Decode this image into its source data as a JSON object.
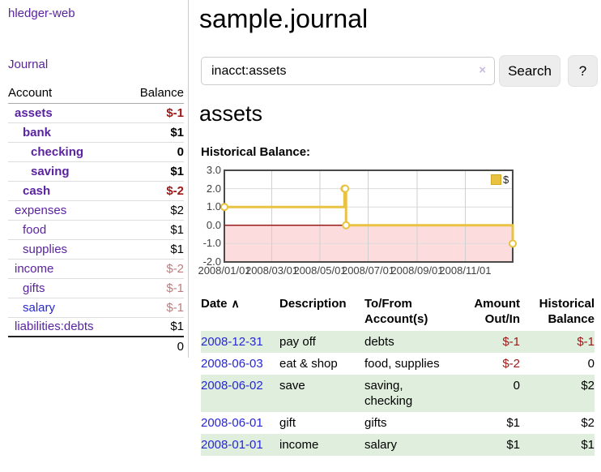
{
  "app": {
    "brand": "hledger-web"
  },
  "colors": {
    "accent_purple": "#5a23a0",
    "link_blue": "#2727d4",
    "negative_strong": "#9d1616",
    "negative_soft": "#bd7b7b",
    "row_stripe_green": "#dfeedd",
    "chart_gold": "#e8c240",
    "chart_negative_region": "#fcdcdc",
    "chart_zero_line": "#991b1b"
  },
  "sidebar": {
    "journal_label": "Journal",
    "accounts": {
      "headers": [
        "Account",
        "Balance"
      ],
      "rows": [
        {
          "name": "assets",
          "balance": "$-1",
          "depth": 1,
          "bold": true,
          "neg": "strong"
        },
        {
          "name": "bank",
          "balance": "$1",
          "depth": 2,
          "bold": true,
          "neg": ""
        },
        {
          "name": "checking",
          "balance": "0",
          "depth": 3,
          "bold": true,
          "neg": ""
        },
        {
          "name": "saving",
          "balance": "$1",
          "depth": 3,
          "bold": true,
          "neg": ""
        },
        {
          "name": "cash",
          "balance": "$-2",
          "depth": 2,
          "bold": true,
          "neg": "strong"
        },
        {
          "name": "expenses",
          "balance": "$2",
          "depth": 1,
          "bold": false,
          "neg": ""
        },
        {
          "name": "food",
          "balance": "$1",
          "depth": 2,
          "bold": false,
          "neg": ""
        },
        {
          "name": "supplies",
          "balance": "$1",
          "depth": 2,
          "bold": false,
          "neg": ""
        },
        {
          "name": "income",
          "balance": "$-2",
          "depth": 1,
          "bold": false,
          "neg": "soft"
        },
        {
          "name": "gifts",
          "balance": "$-1",
          "depth": 2,
          "bold": false,
          "neg": "soft"
        },
        {
          "name": "salary",
          "balance": "$-1",
          "depth": 2,
          "bold": false,
          "neg": "soft",
          "link_color": "blue"
        },
        {
          "name": "liabilities:debts",
          "balance": "$1",
          "depth": 1,
          "bold": false,
          "neg": ""
        }
      ],
      "total": "0"
    }
  },
  "main": {
    "title": "sample.journal",
    "search": {
      "value": "inacct:assets",
      "clear_icon": "×",
      "button_label": "Search",
      "help_label": "?"
    },
    "account_heading": "assets"
  },
  "chart_data": {
    "type": "line",
    "title": "Historical Balance:",
    "series": [
      {
        "name": "$",
        "color": "#e8c240",
        "style": "step",
        "points": [
          [
            "2008-01-01",
            1
          ],
          [
            "2008-06-01",
            2
          ],
          [
            "2008-06-02",
            2
          ],
          [
            "2008-06-03",
            0
          ],
          [
            "2008-12-31",
            -1
          ]
        ]
      }
    ],
    "x_range": [
      "2008-01-01",
      "2008-12-31"
    ],
    "ylim": [
      -2,
      3
    ],
    "y_ticks": [
      3,
      2,
      1,
      0,
      -1,
      -2
    ],
    "x_ticks": [
      "2008/01/01",
      "2008/03/01",
      "2008/05/01",
      "2008/07/01",
      "2008/09/01",
      "2008/11/01"
    ],
    "grid": true,
    "legend_position": "top-right",
    "negative_region_color": "#fcdcdc",
    "zero_line_color": "#991b1b"
  },
  "register": {
    "sort_icon": "∧",
    "headers": [
      {
        "label": "Date",
        "sorted": true,
        "align": "left"
      },
      {
        "label": "Description",
        "align": "left"
      },
      {
        "label": "To/From Account(s)",
        "align": "left"
      },
      {
        "label": "Amount Out/In",
        "align": "right"
      },
      {
        "label": "Historical Balance",
        "align": "right"
      }
    ],
    "rows": [
      {
        "date": "2008-12-31",
        "description": "pay off",
        "accounts": "debts",
        "amount": "$-1",
        "balance": "$-1",
        "shaded": true
      },
      {
        "date": "2008-06-03",
        "description": "eat & shop",
        "accounts": "food, supplies",
        "amount": "$-2",
        "balance": "0",
        "shaded": false
      },
      {
        "date": "2008-06-02",
        "description": "save",
        "accounts": "saving,\nchecking",
        "amount": "0",
        "balance": "$2",
        "shaded": true
      },
      {
        "date": "2008-06-01",
        "description": "gift",
        "accounts": "gifts",
        "amount": "$1",
        "balance": "$2",
        "shaded": false
      },
      {
        "date": "2008-01-01",
        "description": "income",
        "accounts": "salary",
        "amount": "$1",
        "balance": "$1",
        "shaded": true
      }
    ]
  }
}
